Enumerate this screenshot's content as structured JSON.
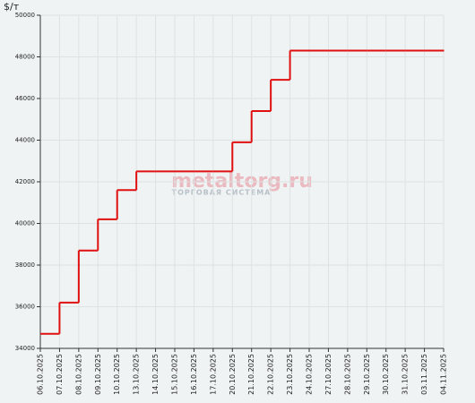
{
  "chart_data": {
    "type": "line",
    "step": "post",
    "y_label": "$/т",
    "watermark": {
      "brand": "metaltorg.ru",
      "tagline": "ТОРГОВАЯ СИСТЕМА"
    },
    "categories": [
      "06.10.2025",
      "07.10.2025",
      "08.10.2025",
      "09.10.2025",
      "10.10.2025",
      "13.10.2025",
      "14.10.2025",
      "15.10.2025",
      "16.10.2025",
      "17.10.2025",
      "20.10.2025",
      "21.10.2025",
      "22.10.2025",
      "23.10.2025",
      "24.10.2025",
      "27.10.2025",
      "28.10.2025",
      "29.10.2025",
      "30.10.2025",
      "31.10.2025",
      "03.11.2025",
      "04.11.2025"
    ],
    "series": [
      {
        "color": "#e01010",
        "values": [
          34700,
          36200,
          38700,
          40200,
          41600,
          42500,
          42500,
          42500,
          42500,
          42500,
          43900,
          45400,
          46900,
          48300,
          48300,
          48300,
          48300,
          48300,
          48300,
          48300,
          48300,
          48300
        ]
      }
    ],
    "ylim": [
      34000,
      50000
    ],
    "yticks": [
      34000,
      36000,
      38000,
      40000,
      42000,
      44000,
      46000,
      48000,
      50000
    ],
    "grid": true
  }
}
